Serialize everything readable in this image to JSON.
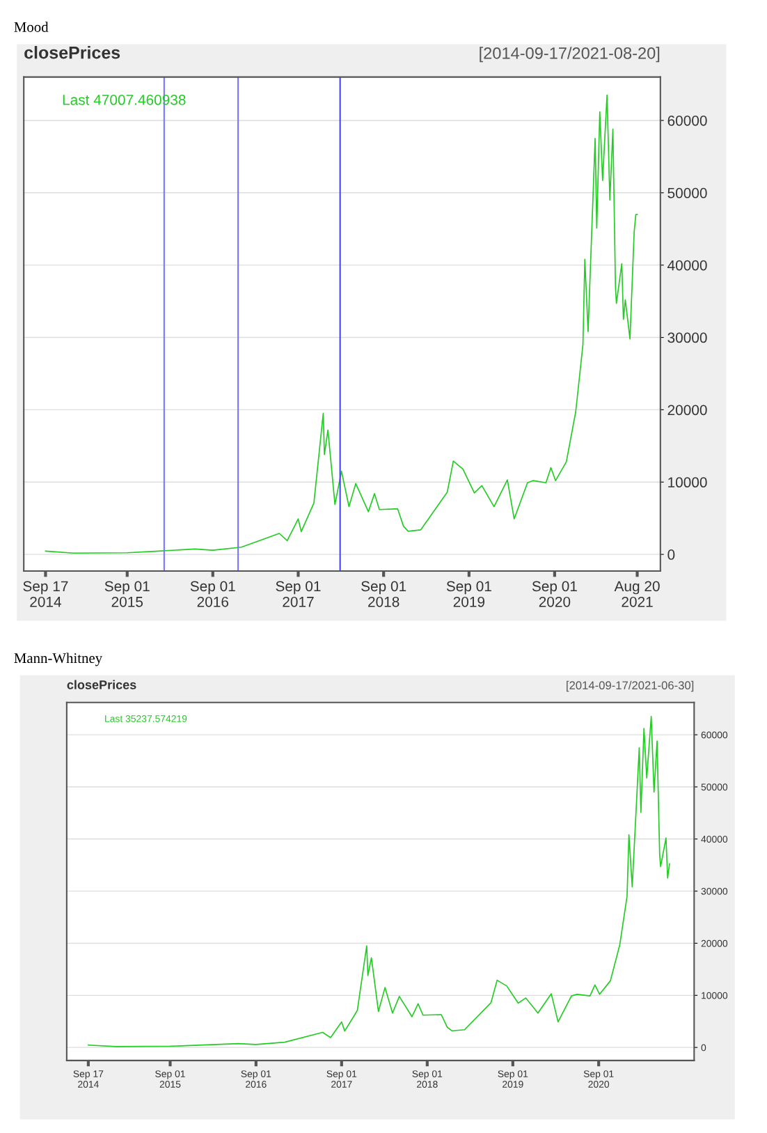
{
  "chart_data": [
    {
      "type": "line",
      "title": "Mood",
      "subtitle": "closePrices",
      "annotations": [
        "[2014-09-17/2021-08-20]",
        "Last 47007.460938"
      ],
      "x": [
        "2014-09-17",
        "2015-01-14",
        "2015-09-01",
        "2016-01-01",
        "2016-06-17",
        "2016-09-01",
        "2017-01-01",
        "2017-06-12",
        "2017-07-16",
        "2017-09-01",
        "2017-09-14",
        "2017-11-07",
        "2017-12-17",
        "2017-12-22",
        "2018-01-06",
        "2018-02-05",
        "2018-03-05",
        "2018-04-06",
        "2018-05-05",
        "2018-06-28",
        "2018-07-24",
        "2018-08-14",
        "2018-10-31",
        "2018-11-25",
        "2018-12-15",
        "2019-02-07",
        "2019-05-31",
        "2019-06-26",
        "2019-08-06",
        "2019-09-24",
        "2019-10-26",
        "2019-12-17",
        "2020-02-12",
        "2020-03-12",
        "2020-05-08",
        "2020-06-01",
        "2020-07-26",
        "2020-08-16",
        "2020-09-05",
        "2020-10-21",
        "2020-11-30",
        "2020-12-31",
        "2021-01-08",
        "2021-01-22",
        "2021-02-21",
        "2021-02-28",
        "2021-03-13",
        "2021-03-25",
        "2021-04-13",
        "2021-04-25",
        "2021-05-08",
        "2021-05-19",
        "2021-05-23",
        "2021-06-15",
        "2021-06-22",
        "2021-06-30",
        "2021-07-20",
        "2021-08-07",
        "2021-08-14",
        "2021-08-20"
      ],
      "series": [
        {
          "color": "#22cc22",
          "values": [
            457,
            178,
            230,
            430,
            750,
            570,
            1000,
            2900,
            1900,
            4900,
            3150,
            7100,
            19500,
            13800,
            17200,
            6900,
            11500,
            6600,
            9800,
            5900,
            8400,
            6200,
            6300,
            3900,
            3200,
            3400,
            8600,
            12900,
            11800,
            8500,
            9500,
            6600,
            10300,
            4900,
            9900,
            10200,
            9900,
            12000,
            10200,
            12800,
            19700,
            29000,
            40800,
            30800,
            57500,
            45100,
            61200,
            51700,
            63500,
            49000,
            58800,
            37000,
            34700,
            40200,
            32500,
            35200,
            29800,
            44600,
            47000,
            47007.460938
          ]
        }
      ],
      "xlim": [
        "2014-06-16",
        "2021-11-27"
      ],
      "xticks": [
        {
          "value": "2014-09-17",
          "label": "Sep 17\n2014"
        },
        {
          "value": "2015-09-01",
          "label": "Sep 01\n2015"
        },
        {
          "value": "2016-09-01",
          "label": "Sep 01\n2016"
        },
        {
          "value": "2017-09-01",
          "label": "Sep 01\n2017"
        },
        {
          "value": "2018-09-01",
          "label": "Sep 01\n2018"
        },
        {
          "value": "2019-09-01",
          "label": "Sep 01\n2019"
        },
        {
          "value": "2020-09-01",
          "label": "Sep 01\n2020"
        },
        {
          "value": "2021-08-20",
          "label": "Aug 20\n2021"
        }
      ],
      "ylim": [
        -2300,
        66000
      ],
      "yticks": [
        0,
        10000,
        20000,
        30000,
        40000,
        50000,
        60000
      ],
      "grid": "y",
      "ref_lines": [
        {
          "axis": "x",
          "value": "2016-02-06",
          "color": "#7777ff"
        },
        {
          "axis": "x",
          "value": "2016-12-18",
          "color": "#7777ff"
        },
        {
          "axis": "x",
          "value": "2018-02-27",
          "color": "#4444ff"
        }
      ]
    },
    {
      "type": "line",
      "title": "Mann-Whitney",
      "subtitle": "closePrices",
      "annotations": [
        "[2014-09-17/2021-06-30]",
        "Last 35237.574219"
      ],
      "x": [
        "2014-09-17",
        "2015-01-14",
        "2015-09-01",
        "2016-01-01",
        "2016-06-17",
        "2016-09-01",
        "2017-01-01",
        "2017-06-12",
        "2017-07-16",
        "2017-09-01",
        "2017-09-14",
        "2017-11-07",
        "2017-12-17",
        "2017-12-22",
        "2018-01-06",
        "2018-02-05",
        "2018-03-05",
        "2018-04-06",
        "2018-05-05",
        "2018-06-28",
        "2018-07-24",
        "2018-08-14",
        "2018-10-31",
        "2018-11-25",
        "2018-12-15",
        "2019-02-07",
        "2019-05-31",
        "2019-06-26",
        "2019-08-06",
        "2019-09-24",
        "2019-10-26",
        "2019-12-17",
        "2020-02-12",
        "2020-03-12",
        "2020-05-08",
        "2020-06-01",
        "2020-07-26",
        "2020-08-16",
        "2020-09-05",
        "2020-10-21",
        "2020-11-30",
        "2020-12-31",
        "2021-01-08",
        "2021-01-22",
        "2021-02-21",
        "2021-02-28",
        "2021-03-13",
        "2021-03-25",
        "2021-04-13",
        "2021-04-25",
        "2021-05-08",
        "2021-05-19",
        "2021-05-23",
        "2021-06-15",
        "2021-06-22",
        "2021-06-30"
      ],
      "series": [
        {
          "color": "#22cc22",
          "values": [
            457,
            178,
            230,
            430,
            750,
            570,
            1000,
            2900,
            1900,
            4900,
            3150,
            7100,
            19500,
            13800,
            17200,
            6900,
            11500,
            6600,
            9800,
            5900,
            8400,
            6200,
            6300,
            3900,
            3200,
            3400,
            8600,
            12900,
            11800,
            8500,
            9500,
            6600,
            10300,
            4900,
            9900,
            10200,
            9900,
            12000,
            10200,
            12800,
            19700,
            29000,
            40800,
            30800,
            57500,
            45100,
            61200,
            51700,
            63500,
            49000,
            58800,
            37000,
            34700,
            40200,
            32500,
            35237.574219
          ]
        }
      ],
      "xlim": [
        "2014-06-17",
        "2021-10-13"
      ],
      "xticks": [
        {
          "value": "2014-09-17",
          "label": "Sep 17\n2014"
        },
        {
          "value": "2015-09-01",
          "label": "Sep 01\n2015"
        },
        {
          "value": "2016-09-01",
          "label": "Sep 01\n2016"
        },
        {
          "value": "2017-09-01",
          "label": "Sep 01\n2017"
        },
        {
          "value": "2018-09-01",
          "label": "Sep 01\n2018"
        },
        {
          "value": "2019-09-01",
          "label": "Sep 01\n2019"
        },
        {
          "value": "2020-09-01",
          "label": "Sep 01\n2020"
        }
      ],
      "ylim": [
        -2500,
        66200
      ],
      "yticks": [
        0,
        10000,
        20000,
        30000,
        40000,
        50000,
        60000
      ],
      "grid": "y"
    }
  ]
}
